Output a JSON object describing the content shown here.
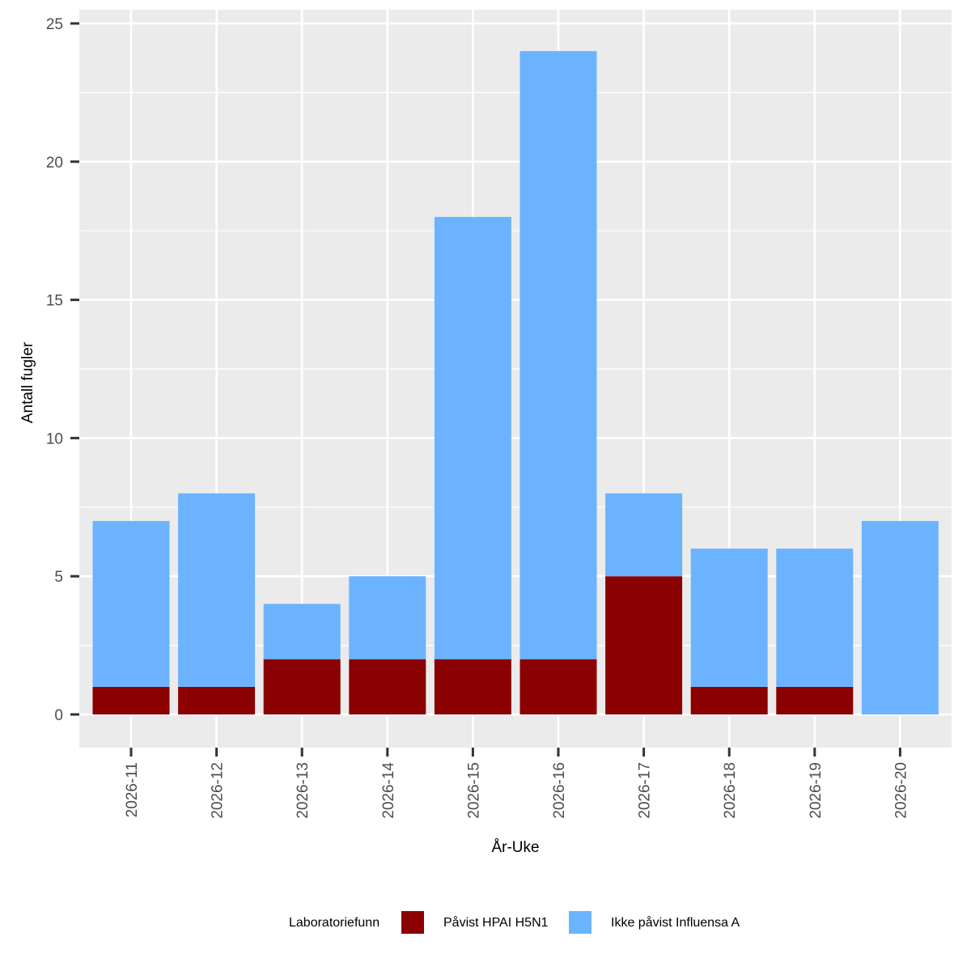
{
  "chart_data": {
    "type": "bar",
    "stacked": true,
    "categories": [
      "2026-11",
      "2026-12",
      "2026-13",
      "2026-14",
      "2026-15",
      "2026-16",
      "2026-17",
      "2026-18",
      "2026-19",
      "2026-20"
    ],
    "series": [
      {
        "name": "Påvist HPAI H5N1",
        "color": "#8B0000",
        "values": [
          1,
          1,
          2,
          2,
          2,
          2,
          5,
          1,
          1,
          0
        ]
      },
      {
        "name": "Ikke påvist Influensa A",
        "color": "#6BB3FF",
        "values": [
          6,
          7,
          2,
          3,
          16,
          22,
          3,
          5,
          5,
          7
        ]
      }
    ],
    "xlabel": "År-Uke",
    "ylabel": "Antall fugler",
    "ylim": [
      0,
      25
    ],
    "yticks": [
      "0",
      "5",
      "10",
      "15",
      "20",
      "25"
    ],
    "grid": true,
    "legend_title": "Laboratoriefunn",
    "legend_position": "bottom",
    "panel_background": "#EBEBEB"
  }
}
